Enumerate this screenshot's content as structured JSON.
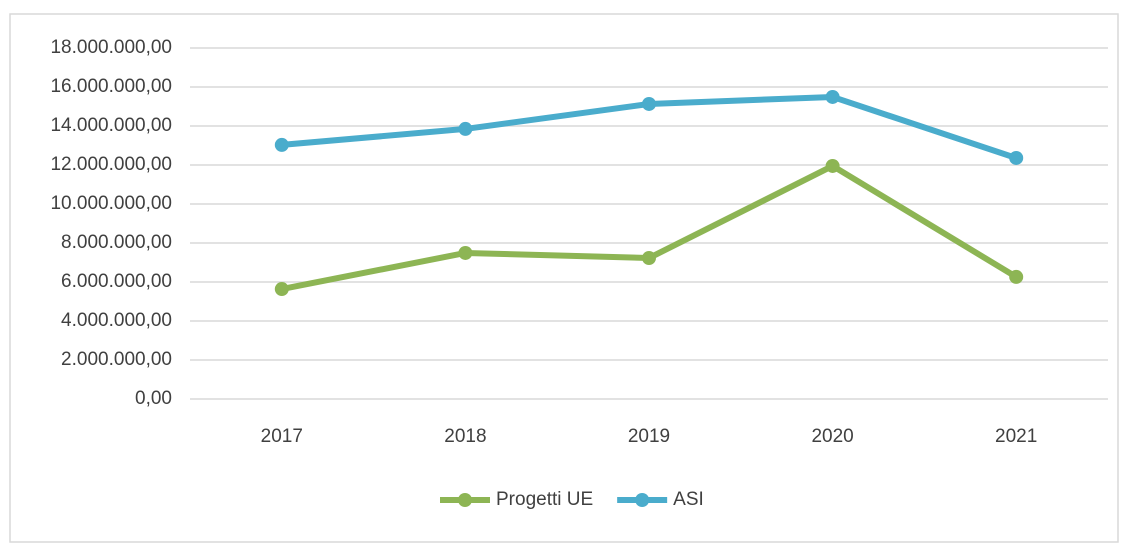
{
  "chart_data": {
    "type": "line",
    "categories": [
      "2017",
      "2018",
      "2019",
      "2020",
      "2021"
    ],
    "series": [
      {
        "name": "Progetti UE",
        "color": "#8db554",
        "values": [
          5640000,
          7490000,
          7230000,
          11950000,
          6260000
        ]
      },
      {
        "name": "ASI",
        "color": "#4aaccc",
        "values": [
          13030000,
          13850000,
          15130000,
          15490000,
          12360000
        ]
      }
    ],
    "ylim": [
      0,
      18000000
    ],
    "yticks": [
      {
        "value": 0,
        "label": "0,00"
      },
      {
        "value": 2000000,
        "label": "2.000.000,00"
      },
      {
        "value": 4000000,
        "label": "4.000.000,00"
      },
      {
        "value": 6000000,
        "label": "6.000.000,00"
      },
      {
        "value": 8000000,
        "label": "8.000.000,00"
      },
      {
        "value": 10000000,
        "label": "10.000.000,00"
      },
      {
        "value": 12000000,
        "label": "12.000.000,00"
      },
      {
        "value": 14000000,
        "label": "14.000.000,00"
      },
      {
        "value": 16000000,
        "label": "16.000.000,00"
      },
      {
        "value": 18000000,
        "label": "18.000.000,00"
      }
    ],
    "grid": true,
    "legend": "bottom"
  }
}
